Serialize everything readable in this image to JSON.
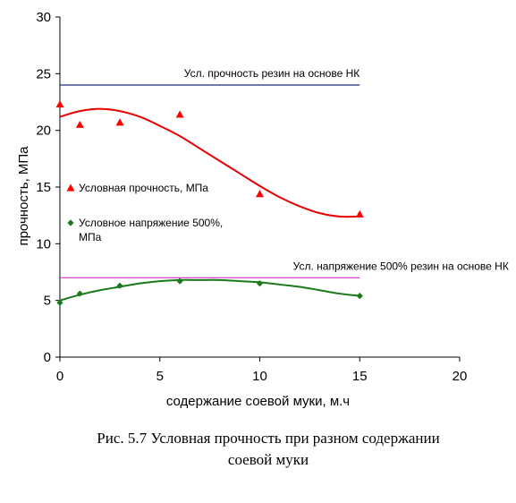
{
  "chart_data": {
    "type": "scatter",
    "xlabel": "содержание соевой муки, м.ч",
    "ylabel": "прочность, МПа",
    "xlim": [
      0,
      20
    ],
    "ylim": [
      0,
      30
    ],
    "xticks": [
      0,
      5,
      10,
      15,
      20
    ],
    "yticks": [
      0,
      5,
      10,
      15,
      20,
      25,
      30
    ],
    "grid": false,
    "legend_position": "left-middle",
    "series": [
      {
        "name": "Условная прочность, МПа",
        "marker": "triangle",
        "color": "#ff0000",
        "trend_color": "#e60000",
        "x": [
          0,
          1,
          3,
          6,
          10,
          15
        ],
        "y": [
          22.3,
          20.5,
          20.7,
          21.4,
          14.4,
          12.6
        ],
        "trend_x": [
          0,
          1,
          2,
          3,
          4,
          5,
          6,
          7,
          8,
          9,
          10,
          11,
          12,
          13,
          14,
          15
        ],
        "trend_y": [
          21.2,
          21.7,
          21.9,
          21.7,
          21.2,
          20.4,
          19.5,
          18.4,
          17.3,
          16.2,
          15.1,
          14.1,
          13.3,
          12.7,
          12.4,
          12.4
        ]
      },
      {
        "name": "Условное напряжение 500%, МПа",
        "marker": "diamond",
        "color": "#1a7a1a",
        "trend_color": "#1a7a1a",
        "x": [
          0,
          1,
          3,
          6,
          10,
          15
        ],
        "y": [
          4.8,
          5.6,
          6.3,
          6.7,
          6.5,
          5.4
        ],
        "trend_x": [
          0,
          1,
          2,
          3,
          4,
          5,
          6,
          7,
          8,
          9,
          10,
          11,
          12,
          13,
          14,
          15
        ],
        "trend_y": [
          5.0,
          5.5,
          5.9,
          6.2,
          6.5,
          6.7,
          6.8,
          6.8,
          6.8,
          6.7,
          6.6,
          6.4,
          6.2,
          5.9,
          5.6,
          5.4
        ]
      }
    ],
    "reference_lines": [
      {
        "y": 24,
        "x_end": 15,
        "color": "#1f2a7a",
        "label": "Усл. прочность резин на основе НК"
      },
      {
        "y": 7,
        "x_end": 15,
        "color": "#cc33cc",
        "label": "Усл. напряжение 500% резин на основе НК"
      }
    ],
    "legend": [
      {
        "lines": [
          "Условная прочность, МПа"
        ]
      },
      {
        "lines": [
          "Условное напряжение 500%,",
          "МПа"
        ]
      }
    ]
  },
  "caption": {
    "line1": "Рис. 5.7 Условная прочность при разном содержании",
    "line2": "соевой муки"
  }
}
